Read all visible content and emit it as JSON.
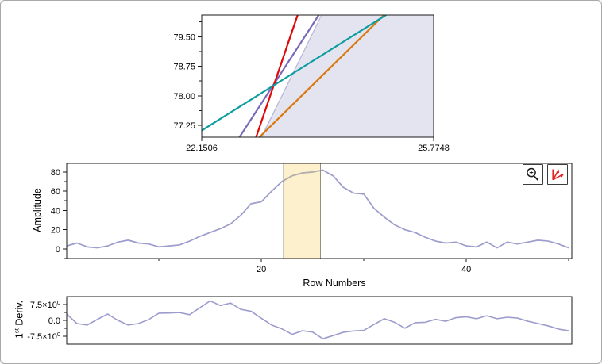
{
  "window": {
    "background": "#ffffff",
    "border_color": "#a9a9a9",
    "axis_color": "#1a1a1a",
    "text_color": "#000000"
  },
  "ui": {
    "tools": [
      {
        "name": "zoom-in",
        "icon": "magnifier-plus-icon",
        "icon_color": "#1a1a1a"
      },
      {
        "name": "rescale-axes",
        "icon": "red-axes-arrows-icon",
        "icon_color": "#e82222"
      }
    ]
  },
  "chart_data": {
    "zoom_detail": {
      "type": "line",
      "title": "",
      "x_range": [
        22.1506,
        25.7748
      ],
      "y_range": [
        76.95,
        80.05
      ],
      "x_tick_values": [
        22.1506,
        25.7748
      ],
      "x_tick_labels": [
        "22.1506",
        "25.7748"
      ],
      "y_tick_values": [
        77.25,
        78.0,
        78.75,
        79.5
      ],
      "y_tick_labels": [
        "77.25",
        "78.00",
        "78.75",
        "79.50"
      ],
      "y_minor_ticks": [
        77.625,
        78.375,
        79.125,
        79.875
      ],
      "shaded_region": {
        "fill": "#e4e4f0",
        "points": [
          [
            23.07,
            76.95
          ],
          [
            24.04,
            80.05
          ],
          [
            25.7748,
            80.05
          ],
          [
            25.7748,
            76.95
          ]
        ]
      },
      "lines": [
        {
          "name": "gray-thin-line",
          "color": "#b7b7d8",
          "width": 1.3,
          "from": [
            23.07,
            76.9
          ],
          "to": [
            24.04,
            80.1
          ]
        },
        {
          "name": "purple-line",
          "color": "#7a68bb",
          "width": 2.2,
          "from": [
            22.72,
            76.9
          ],
          "to": [
            24.0,
            80.1
          ]
        },
        {
          "name": "red-line",
          "color": "#e00707",
          "width": 2.2,
          "from": [
            22.99,
            76.9
          ],
          "to": [
            23.66,
            80.1
          ]
        },
        {
          "name": "orange-line",
          "color": "#d9790f",
          "width": 2.2,
          "from": [
            23.02,
            76.9
          ],
          "to": [
            25.03,
            80.1
          ]
        },
        {
          "name": "teal-line",
          "color": "#0d9da0",
          "width": 2.2,
          "from": [
            22.1506,
            77.12
          ],
          "to": [
            25.05,
            80.07
          ]
        }
      ]
    },
    "amplitude": {
      "type": "line",
      "ylabel": "Amplitude",
      "xlabel": "Row Numbers",
      "x_range": [
        1,
        50.3
      ],
      "y_range": [
        -10.1,
        89
      ],
      "x_tick_values": [
        20,
        40
      ],
      "x_tick_labels": [
        "20",
        "40"
      ],
      "x_minor_ticks": [
        10,
        30,
        50
      ],
      "y_tick_values": [
        0,
        20,
        40,
        60,
        80
      ],
      "y_tick_labels": [
        "0",
        "20",
        "40",
        "60",
        "80"
      ],
      "y_minor_ticks": [
        -10,
        10,
        30,
        50,
        70
      ],
      "series_color": "#9c9ccd",
      "band": {
        "x0": 22.1506,
        "x1": 25.7748,
        "fill": "#fcf0cd",
        "border": "#97907a",
        "segment_color": "#b4b0a8"
      },
      "x_start": 1,
      "values": [
        3,
        6,
        2,
        1,
        3,
        7,
        9,
        6,
        5,
        2,
        3,
        4,
        8,
        13,
        17,
        21,
        26,
        35,
        47,
        49,
        60,
        70,
        76,
        79,
        80,
        82,
        76,
        64,
        58,
        57,
        42,
        33,
        25,
        20,
        17,
        12,
        8,
        6,
        7,
        3,
        2,
        7,
        1,
        7,
        5,
        7,
        9,
        8,
        5,
        1
      ]
    },
    "first_deriv": {
      "type": "line",
      "ylabel_num": "1",
      "ylabel_sup": "st",
      "ylabel_rest": " Deriv.",
      "x_range": [
        1,
        50.3
      ],
      "y_range": [
        -11.25,
        11.25
      ],
      "y_tick_values": [
        7.5,
        0,
        -7.5
      ],
      "y_tick_labels": [
        {
          "m": "7.5×10",
          "sup": "0"
        },
        {
          "m": "0.0"
        },
        {
          "m": "-7.5×10",
          "sup": "0"
        }
      ],
      "y_minor_ticks": [
        3.75,
        -3.75
      ],
      "series_color": "#9c9ccd",
      "x_start": 1,
      "values": [
        3,
        -1.5,
        -2.2,
        0.5,
        3,
        0,
        -2.2,
        -1.5,
        0.4,
        3.4,
        3.5,
        3.7,
        2.7,
        6,
        9.2,
        7,
        8.2,
        5.2,
        4.3,
        1,
        -2.2,
        -4,
        -6.6,
        -4.9,
        -5.5,
        -8.7,
        -7.2,
        -5.6,
        -5,
        -4.7,
        -1.9,
        0.8,
        -0.9,
        -3.7,
        -1.1,
        -0.9,
        0.5,
        -0.4,
        1.3,
        1.7,
        0.8,
        2.2,
        0.8,
        1.5,
        1.1,
        -0.4,
        -1.5,
        -2.6,
        -4.1,
        -4.9
      ]
    }
  }
}
